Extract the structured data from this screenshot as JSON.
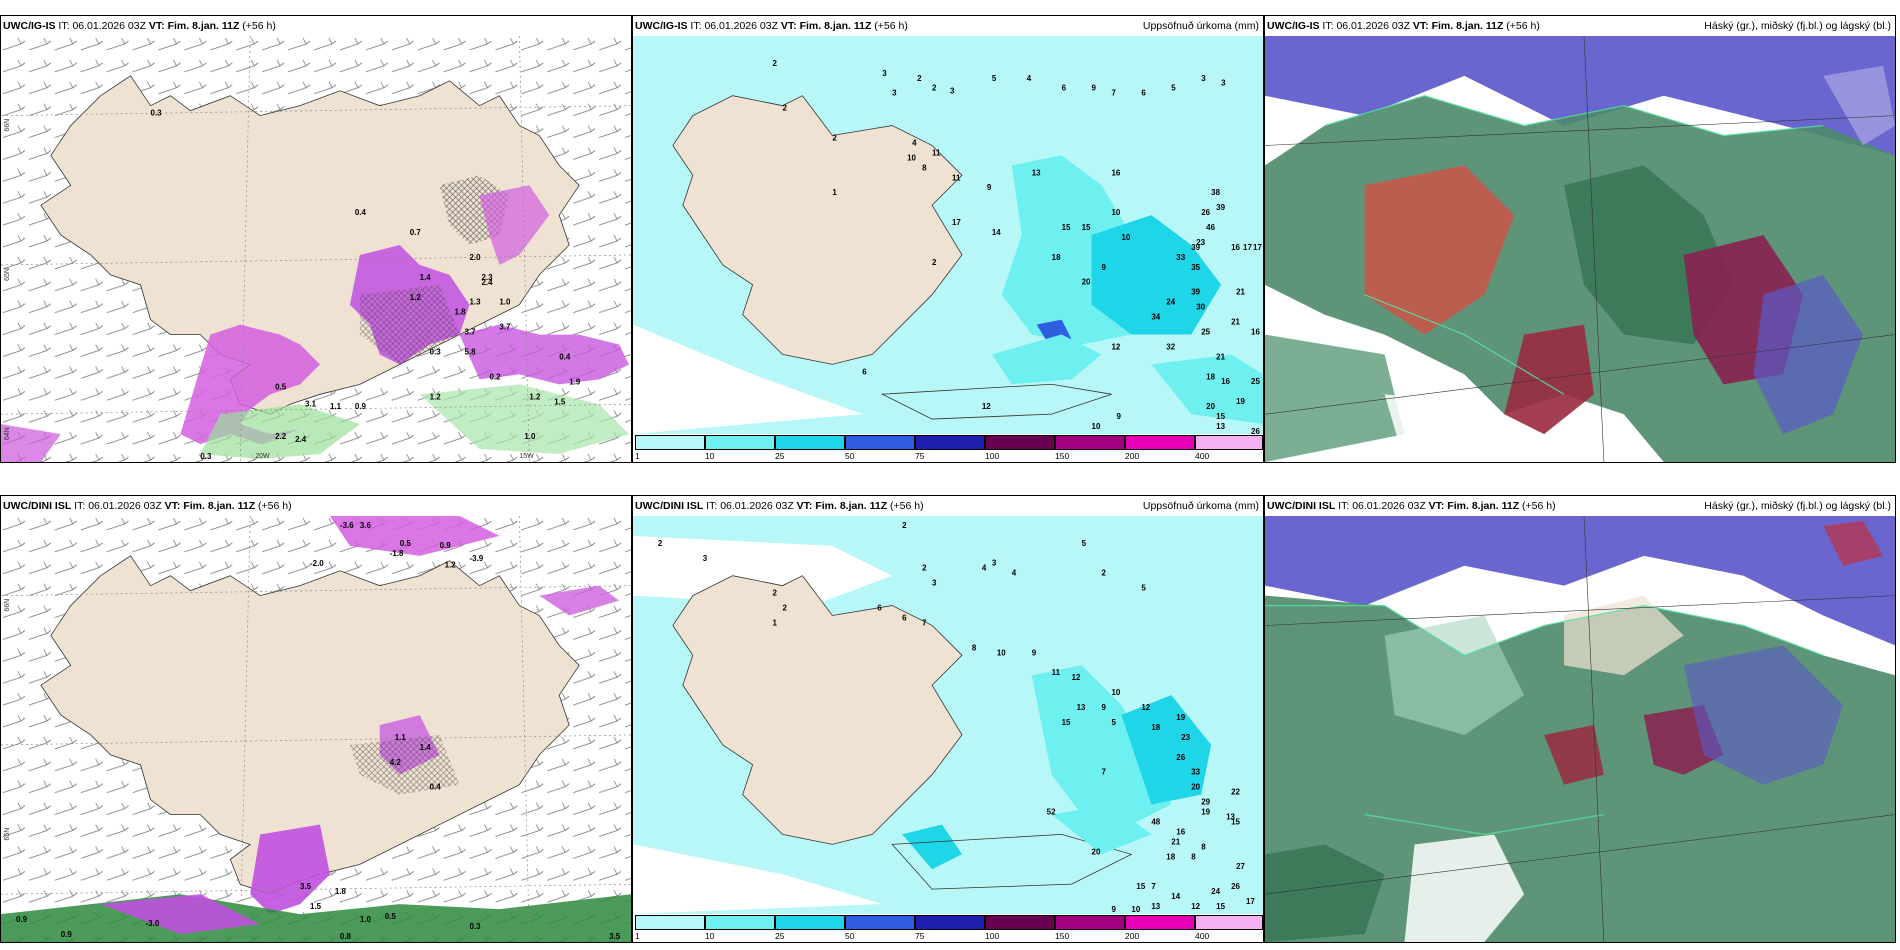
{
  "panels": [
    {
      "id": "p1",
      "model": "UWC/IG-IS",
      "it_label": "IT:",
      "it": "06.01.2026 03Z",
      "vt_label": "VT:",
      "vt": "Fim. 8.jan. 11Z",
      "lead": "(+56 h)",
      "right_title": ""
    },
    {
      "id": "p2",
      "model": "UWC/IG-IS",
      "it_label": "IT:",
      "it": "06.01.2026 03Z",
      "vt_label": "VT:",
      "vt": "Fim. 8.jan. 11Z",
      "lead": "(+56 h)",
      "right_title": "Uppsöfnuð úrkoma (mm)"
    },
    {
      "id": "p3",
      "model": "UWC/IG-IS",
      "it_label": "IT:",
      "it": "06.01.2026 03Z",
      "vt_label": "VT:",
      "vt": "Fim. 8.jan. 11Z",
      "lead": "(+56 h)",
      "right_title": "Háský (gr.), miðský (fj.bl.) og lágský (bl.)"
    },
    {
      "id": "p4",
      "model": "UWC/DINI ISL",
      "it_label": "IT:",
      "it": "06.01.2026 03Z",
      "vt_label": "VT:",
      "vt": "Fim. 8.jan. 11Z",
      "lead": "(+56 h)",
      "right_title": ""
    },
    {
      "id": "p5",
      "model": "UWC/DINI ISL",
      "it_label": "IT:",
      "it": "06.01.2026 03Z",
      "vt_label": "VT:",
      "vt": "Fim. 8.jan. 11Z",
      "lead": "(+56 h)",
      "right_title": "Uppsöfnuð úrkoma (mm)"
    },
    {
      "id": "p6",
      "model": "UWC/DINI ISL",
      "it_label": "IT:",
      "it": "06.01.2026 03Z",
      "vt_label": "VT:",
      "vt": "Fim. 8.jan. 11Z",
      "lead": "(+56 h)",
      "right_title": "Háský (gr.), miðský (fj.bl.) og lágský (bl.)"
    }
  ],
  "colorbar": {
    "ticks": [
      "1",
      "10",
      "25",
      "50",
      "75",
      "100",
      "150",
      "200",
      "400"
    ],
    "colors": [
      "#b7f7f7",
      "#6ff0f0",
      "#1fd5e8",
      "#2f5fe0",
      "#2020b0",
      "#6a0050",
      "#a00080",
      "#e800b8",
      "#f4b0f0"
    ]
  },
  "axis_labels": {
    "lat66_top": "66N",
    "lat65_top": "65N",
    "lat64_top": "64N",
    "w20": "20W",
    "w15": "15W",
    "lat66_bot": "66N",
    "lat65_bot": "65N"
  },
  "p1_values": [
    "0.3",
    "0.7",
    "0.4",
    "2.0",
    "1.2",
    "1.4",
    "2.4",
    "1.3",
    "1.8",
    "2.3",
    "1.0",
    "3.7",
    "3.7",
    "0.3",
    "5.8",
    "0.5",
    "3.1",
    "1.1",
    "0.9",
    "1.2",
    "2.2",
    "2.4",
    "0.3",
    "0.2",
    "1.0",
    "1.9",
    "0.4",
    "1.2",
    "1.5"
  ],
  "p2_values": [
    "2",
    "3",
    "3",
    "2",
    "2",
    "3",
    "5",
    "4",
    "6",
    "9",
    "7",
    "6",
    "5",
    "3",
    "3",
    "2",
    "2",
    "4",
    "10",
    "8",
    "11",
    "11",
    "9",
    "13",
    "16",
    "10",
    "15",
    "17",
    "18",
    "14",
    "15",
    "10",
    "9",
    "23",
    "26",
    "38",
    "39",
    "46",
    "39",
    "35",
    "16",
    "17",
    "17",
    "33",
    "39",
    "30",
    "21",
    "21",
    "24",
    "20",
    "34",
    "32",
    "25",
    "21",
    "16",
    "18",
    "16",
    "25",
    "20",
    "19",
    "15",
    "26",
    "9",
    "12",
    "10",
    "13",
    "12",
    "6",
    "2",
    "1"
  ],
  "p4_values": [
    "-3.6",
    "3.6",
    "0.5",
    "-2.0",
    "-1.8",
    "-3.9",
    "0.9",
    "1.2",
    "1.4",
    "3.5",
    "1.8",
    "1.5",
    "1.0",
    "0.5",
    "0.9",
    "-3.0",
    "0.9",
    "0.8",
    "0.3",
    "3.5",
    "0.4",
    "1.1",
    "4.2"
  ],
  "p5_values": [
    "2",
    "3",
    "2",
    "2",
    "3",
    "4",
    "4",
    "5",
    "2",
    "5",
    "6",
    "6",
    "7",
    "8",
    "10",
    "9",
    "11",
    "12",
    "9",
    "13",
    "10",
    "15",
    "12",
    "18",
    "19",
    "23",
    "26",
    "33",
    "20",
    "29",
    "22",
    "15",
    "13",
    "8",
    "27",
    "26",
    "24",
    "15",
    "19",
    "16",
    "21",
    "17",
    "12",
    "14",
    "13",
    "10",
    "9",
    "7",
    "5",
    "20",
    "15",
    "52",
    "48",
    "18",
    "8",
    "7",
    "1",
    "2",
    "2",
    "3"
  ]
}
